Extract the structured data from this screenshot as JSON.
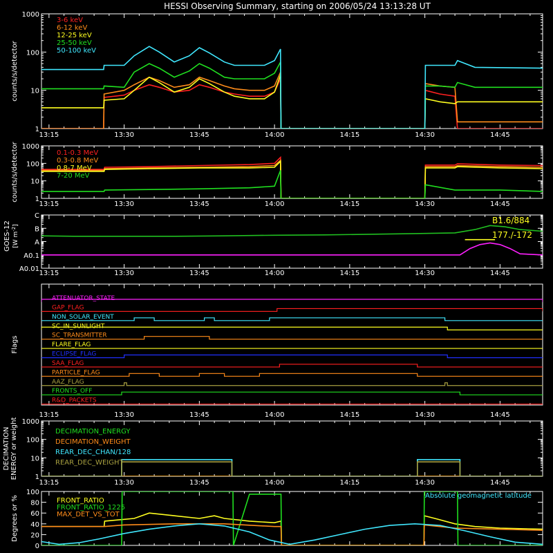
{
  "title": "HESSI Observing Summary, starting on 2006/05/24 13:13:28 UT",
  "colors": {
    "background": "#000000",
    "axes": "#ffffff",
    "red": "#ff2020",
    "orange": "#ff8c1a",
    "yellow": "#ffff20",
    "green": "#20e020",
    "cyan": "#40e8ff",
    "magenta": "#ff20ff",
    "blue": "#2030ff",
    "olive": "#a8a040",
    "goes_green": "#20c020"
  },
  "x_axis": {
    "tick_labels": [
      "13:15",
      "13:30",
      "13:45",
      "14:00",
      "14:15",
      "14:30",
      "14:45"
    ],
    "tick_values": [
      795,
      810,
      825,
      840,
      855,
      870,
      885
    ],
    "range": [
      793.5,
      893.5
    ]
  },
  "chart_data": [
    {
      "id": "panel1",
      "type": "line",
      "ylabel": "counts/s/detector",
      "ylog": true,
      "ylim": [
        1,
        1000
      ],
      "y_ticks": [
        1,
        10,
        100,
        1000
      ],
      "y_tick_labels": [
        "1",
        "10",
        "100",
        "1000"
      ],
      "legend": {
        "placement": "top-left",
        "entries": [
          "3-6 keV",
          "6-12 keV",
          "12-25 keV",
          "25-50 keV",
          "50-100 keV"
        ]
      },
      "series": [
        {
          "name": "3-6 keV",
          "color": "red",
          "x": [
            793.5,
            805.9,
            806,
            810,
            812,
            815,
            817,
            820,
            823,
            825,
            827,
            830,
            832,
            835,
            838,
            840,
            841.2,
            841.3,
            870,
            870.1,
            873,
            876,
            876.5,
            878,
            893.5
          ],
          "y": [
            1,
            1,
            6.5,
            7.5,
            10,
            14,
            12,
            9,
            10,
            14,
            12,
            9,
            8,
            7,
            7,
            9,
            20,
            1,
            1,
            10,
            8,
            7,
            1,
            1,
            1
          ]
        },
        {
          "name": "6-12 keV",
          "color": "orange",
          "x": [
            793.5,
            805.9,
            806,
            810,
            812,
            815,
            817,
            820,
            823,
            825,
            827,
            830,
            832,
            835,
            838,
            840,
            841.2,
            841.3,
            870,
            870.1,
            873,
            876,
            876.5,
            878,
            893.5
          ],
          "y": [
            1,
            1,
            8,
            10,
            14,
            22,
            18,
            12,
            14,
            22,
            18,
            13,
            11,
            10,
            10,
            13,
            30,
            1,
            1,
            15,
            13,
            12,
            1.5,
            1.5,
            1.5
          ]
        },
        {
          "name": "12-25 keV",
          "color": "yellow",
          "x": [
            793.5,
            805.9,
            806,
            810,
            812,
            815,
            817,
            820,
            823,
            825,
            827,
            830,
            832,
            835,
            838,
            840,
            841.2,
            841.3,
            870,
            870.1,
            873,
            876,
            876.5,
            893.5
          ],
          "y": [
            3.5,
            3.5,
            5.5,
            6,
            10,
            22,
            16,
            9,
            12,
            20,
            15,
            9,
            7,
            6,
            6,
            9,
            25,
            1,
            1,
            6,
            5,
            4.5,
            5,
            5
          ]
        },
        {
          "name": "25-50 keV",
          "color": "green",
          "x": [
            793.5,
            805.9,
            806,
            810,
            812,
            815,
            817,
            820,
            823,
            825,
            827,
            830,
            832,
            835,
            838,
            840,
            841.2,
            841.3,
            870,
            870.1,
            873,
            876,
            876.5,
            880,
            893.5
          ],
          "y": [
            11,
            11,
            13,
            12,
            30,
            50,
            38,
            22,
            32,
            50,
            38,
            22,
            20,
            20,
            20,
            28,
            55,
            1,
            1,
            13,
            13,
            12,
            16,
            12,
            12
          ]
        },
        {
          "name": "50-100 keV",
          "color": "cyan",
          "x": [
            793.5,
            805.9,
            806,
            810,
            812,
            815,
            817,
            820,
            823,
            825,
            827,
            830,
            832,
            835,
            838,
            840,
            841.2,
            841.3,
            870,
            870.1,
            873,
            876,
            876.5,
            880,
            893.5
          ],
          "y": [
            35,
            35,
            45,
            45,
            80,
            140,
            100,
            55,
            80,
            130,
            95,
            55,
            45,
            45,
            45,
            60,
            120,
            1,
            1,
            45,
            45,
            45,
            60,
            40,
            38
          ]
        }
      ]
    },
    {
      "id": "panel2",
      "type": "line",
      "ylabel": "counts/s/detector",
      "ylog": true,
      "ylim": [
        1,
        1000
      ],
      "y_ticks": [
        1,
        10,
        100,
        1000
      ],
      "y_tick_labels": [
        "1",
        "10",
        "100",
        "1000"
      ],
      "legend": {
        "placement": "top-left",
        "entries": [
          "0.1-0.3 MeV",
          "0.3-0.8 MeV",
          "0.8-7 MeV",
          "7-20 MeV"
        ]
      },
      "series": [
        {
          "name": "0.1-0.3 MeV",
          "color": "red",
          "x": [
            793.5,
            806,
            806.1,
            815,
            825,
            835,
            840,
            841.2,
            841.3,
            870,
            870.1,
            876,
            876.5,
            885,
            893.5
          ],
          "y": [
            45,
            45,
            60,
            65,
            75,
            85,
            100,
            220,
            1,
            1,
            80,
            80,
            95,
            80,
            75
          ]
        },
        {
          "name": "0.3-0.8 MeV",
          "color": "orange",
          "x": [
            793.5,
            806,
            806.1,
            815,
            825,
            835,
            840,
            841.2,
            841.3,
            870,
            870.1,
            876,
            876.5,
            885,
            893.5
          ],
          "y": [
            40,
            40,
            50,
            55,
            60,
            65,
            75,
            150,
            1,
            1,
            65,
            65,
            75,
            65,
            60
          ]
        },
        {
          "name": "0.8-7 MeV",
          "color": "yellow",
          "x": [
            793.5,
            806,
            806.1,
            815,
            825,
            835,
            840,
            841.2,
            841.3,
            870,
            870.1,
            876,
            876.5,
            885,
            893.5
          ],
          "y": [
            35,
            35,
            45,
            50,
            55,
            55,
            60,
            130,
            1,
            1,
            55,
            55,
            65,
            55,
            50
          ]
        },
        {
          "name": "7-20 MeV",
          "color": "green",
          "x": [
            793.5,
            806,
            806.1,
            815,
            825,
            835,
            840,
            841.2,
            841.3,
            870,
            870.1,
            876,
            876.5,
            885,
            893.5
          ],
          "y": [
            2.5,
            2.5,
            3,
            3.2,
            3.5,
            4,
            5,
            40,
            1,
            1,
            6,
            3,
            3,
            3,
            2.5
          ]
        }
      ]
    },
    {
      "id": "goes",
      "type": "line",
      "ylabel": "GOES-12 [W m-2]",
      "ylabel_parts": {
        "main": "GOES-12",
        "unit": "W m",
        "exponent": "-2"
      },
      "ylog": true,
      "ylim": [
        1e-09,
        1e-05
      ],
      "y_ticks": [
        1e-09,
        1e-08,
        1e-07,
        1e-06,
        1e-05
      ],
      "y_tick_labels": [
        "A0.01",
        "A0.1",
        "A",
        "B",
        "C"
      ],
      "annotations": [
        "B1.6/884",
        "177./-172"
      ],
      "series": [
        {
          "name": "long",
          "color": "goes_green",
          "x": [
            793.5,
            800,
            810,
            820,
            830,
            840,
            850,
            860,
            868,
            876,
            880,
            883,
            886,
            889,
            893.5
          ],
          "y": [
            2.7e-07,
            2.5e-07,
            2.5e-07,
            2.5e-07,
            2.7e-07,
            3e-07,
            3.2e-07,
            3.6e-07,
            4e-07,
            4.5e-07,
            8e-07,
            1.6e-06,
            1.3e-06,
            8e-07,
            6e-07
          ]
        },
        {
          "name": "short",
          "color": "magenta",
          "x": [
            793.5,
            810,
            820,
            830,
            840,
            850,
            860,
            870,
            877,
            879,
            881,
            883,
            885,
            887,
            889,
            893.5
          ],
          "y": [
            1e-08,
            1e-08,
            1e-08,
            1e-08,
            1e-08,
            1e-08,
            1e-08,
            1e-08,
            1e-08,
            3e-08,
            6e-08,
            8e-08,
            6e-08,
            3e-08,
            1.2e-08,
            1e-08
          ]
        },
        {
          "name": "marker",
          "color": "yellow",
          "x": [
            878,
            884
          ],
          "y": [
            1.4e-07,
            1.4e-07
          ]
        }
      ]
    },
    {
      "id": "flags",
      "type": "step",
      "ylabel": "Flags",
      "flags": [
        {
          "label": "ATTENUATOR_STATE",
          "color": "magenta",
          "segments": [
            [
              793.5,
              893.5
            ]
          ]
        },
        {
          "label": "GAP_FLAG",
          "color": "red",
          "segments": [
            [
              840.5,
              893.5
            ]
          ]
        },
        {
          "label": "NON_SOLAR_EVENT",
          "color": "cyan",
          "segments": [
            [
              812,
              816
            ],
            [
              826,
              828
            ],
            [
              839,
              874
            ]
          ]
        },
        {
          "label": "SC_IN_SUNLIGHT",
          "color": "yellow",
          "segments": [
            [
              793.5,
              874.5
            ]
          ]
        },
        {
          "label": "SC_TRANSMITTER",
          "color": "orange",
          "segments": [
            [
              814,
              827
            ]
          ]
        },
        {
          "label": "FLARE_FLAG",
          "color": "yellow",
          "segments": []
        },
        {
          "label": "ECLIPSE_FLAG",
          "color": "blue",
          "segments": [
            [
              810,
              874.5
            ]
          ]
        },
        {
          "label": "SAA_FLAG",
          "color": "red",
          "segments": [
            [
              841,
              868.5
            ]
          ]
        },
        {
          "label": "PARTICLE_FLAG",
          "color": "orange",
          "segments": [
            [
              811,
              817
            ],
            [
              825,
              830
            ],
            [
              837,
              868.5
            ]
          ]
        },
        {
          "label": "AAZ_FLAG",
          "color": "olive",
          "segments": [
            [
              810,
              810.5
            ],
            [
              874,
              874.5
            ]
          ]
        },
        {
          "label": "FRONTS_OFF",
          "color": "green",
          "segments": [
            [
              809.5,
              877
            ]
          ]
        },
        {
          "label": "R&D_PACKETS",
          "color": "red",
          "segments": []
        }
      ]
    },
    {
      "id": "decimation",
      "type": "line",
      "ylabel": "DECIMATION ENERGY or weight",
      "ylog": true,
      "ylim": [
        1,
        1000
      ],
      "y_ticks": [
        1,
        10,
        100,
        1000
      ],
      "y_tick_labels": [
        "1",
        "10",
        "100",
        "1000"
      ],
      "legend": {
        "placement": "top-left",
        "entries": [
          "DECIMATION_ENERGY",
          "DECIMATION_WEIGHT",
          "REAR_DEC_CHAN/128",
          "REAR_DEC_WEIGHT"
        ]
      },
      "series": [
        {
          "name": "DECIMATION_ENERGY",
          "color": "green",
          "x": [
            793.5,
            893.5
          ],
          "y": [
            1,
            1
          ]
        },
        {
          "name": "DECIMATION_WEIGHT",
          "color": "orange",
          "x": [
            793.5,
            893.5
          ],
          "y": [
            1,
            1
          ]
        },
        {
          "name": "REAR_DEC_CHAN/128",
          "color": "cyan",
          "x": [
            793.5,
            809.5,
            809.5,
            831.5,
            831.5,
            868.5,
            868.5,
            877,
            877,
            893.5
          ],
          "y": [
            1,
            1,
            8,
            8,
            1,
            1,
            8,
            8,
            1,
            1
          ]
        },
        {
          "name": "REAR_DEC_WEIGHT",
          "color": "olive",
          "x": [
            793.5,
            809.5,
            809.5,
            831.5,
            831.5,
            868.5,
            868.5,
            877,
            877,
            893.5
          ],
          "y": [
            1,
            1,
            6,
            6,
            1,
            1,
            6,
            6,
            1,
            1
          ]
        }
      ]
    },
    {
      "id": "ratios",
      "type": "line",
      "ylabel": "Degrees or %",
      "ylog": false,
      "ylim": [
        0,
        100
      ],
      "y_ticks": [
        0,
        20,
        40,
        60,
        80,
        100
      ],
      "y_tick_labels": [
        "0",
        "20",
        "40",
        "60",
        "80",
        "100"
      ],
      "legend": {
        "placement": "top-left",
        "entries": [
          "FRONT_RATIO",
          "FRONT_RATIO_1225",
          "MAX_DET_VS_TOT"
        ]
      },
      "annotations": [
        "Absolute geomagnetic latitude"
      ],
      "series": [
        {
          "name": "FRONT_RATIO",
          "color": "yellow",
          "x": [
            793.5,
            806,
            806.1,
            812,
            815,
            820,
            825,
            828,
            830,
            835,
            840,
            841.3,
            841.4,
            869.8,
            869.9,
            872,
            876,
            880,
            885,
            893.5
          ],
          "y": [
            35,
            35,
            45,
            50,
            60,
            55,
            50,
            55,
            50,
            45,
            42,
            45,
            0,
            0,
            55,
            50,
            40,
            35,
            32,
            30
          ]
        },
        {
          "name": "FRONT_RATIO_1225",
          "color": "green",
          "x": [
            793.5,
            809.5,
            809.6,
            831.7,
            831.8,
            835,
            841,
            841.3,
            841.4,
            869.8,
            869.9,
            876.5,
            876.6,
            893.5
          ],
          "y": [
            0,
            0,
            100,
            100,
            0,
            95,
            95,
            95,
            0,
            0,
            100,
            100,
            0,
            0
          ]
        },
        {
          "name": "MAX_DET_VS_TOT",
          "color": "orange",
          "x": [
            793.5,
            806,
            810,
            820,
            830,
            840,
            841.3,
            841.4,
            869.8,
            869.9,
            876,
            885,
            893.5
          ],
          "y": [
            35,
            35,
            38,
            40,
            40,
            35,
            35,
            0,
            0,
            38,
            32,
            30,
            28
          ]
        },
        {
          "name": "Absolute geomagnetic latitude",
          "color": "cyan",
          "x": [
            793.5,
            797,
            801,
            805,
            810,
            815,
            820,
            825,
            830,
            835,
            839,
            843,
            848,
            853,
            858,
            863,
            868,
            873,
            878,
            883,
            888,
            893.5
          ],
          "y": [
            7,
            2,
            5,
            12,
            22,
            30,
            36,
            40,
            36,
            25,
            10,
            2,
            10,
            20,
            30,
            37,
            40,
            37,
            27,
            16,
            6,
            2
          ]
        }
      ]
    }
  ]
}
